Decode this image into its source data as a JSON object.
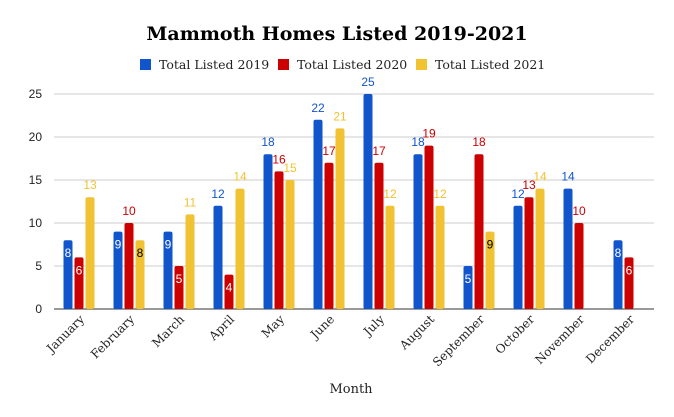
{
  "chart_data": {
    "type": "bar",
    "title": "Mammoth Homes Listed 2019-2021",
    "xlabel": "Month",
    "ylabel": "",
    "ylim": [
      0,
      25
    ],
    "yticks": [
      0,
      5,
      10,
      15,
      20,
      25
    ],
    "grid": true,
    "legend_position": "top",
    "categories": [
      "January",
      "February",
      "March",
      "April",
      "May",
      "June",
      "July",
      "August",
      "September",
      "October",
      "November",
      "December"
    ],
    "series": [
      {
        "name": "Total Listed 2019",
        "color": "#1155cc",
        "label_color": "#1155cc",
        "values": [
          8,
          9,
          9,
          12,
          18,
          22,
          25,
          18,
          5,
          12,
          14,
          8
        ]
      },
      {
        "name": "Total Listed 2020",
        "color": "#cc0000",
        "label_color": "#cc0000",
        "values": [
          6,
          10,
          5,
          4,
          16,
          17,
          17,
          19,
          18,
          13,
          10,
          6
        ]
      },
      {
        "name": "Total Listed 2021",
        "color": "#f1c232",
        "label_color": "#f1c232",
        "values": [
          13,
          8,
          11,
          14,
          15,
          21,
          12,
          12,
          9,
          14,
          null,
          null
        ]
      }
    ]
  }
}
